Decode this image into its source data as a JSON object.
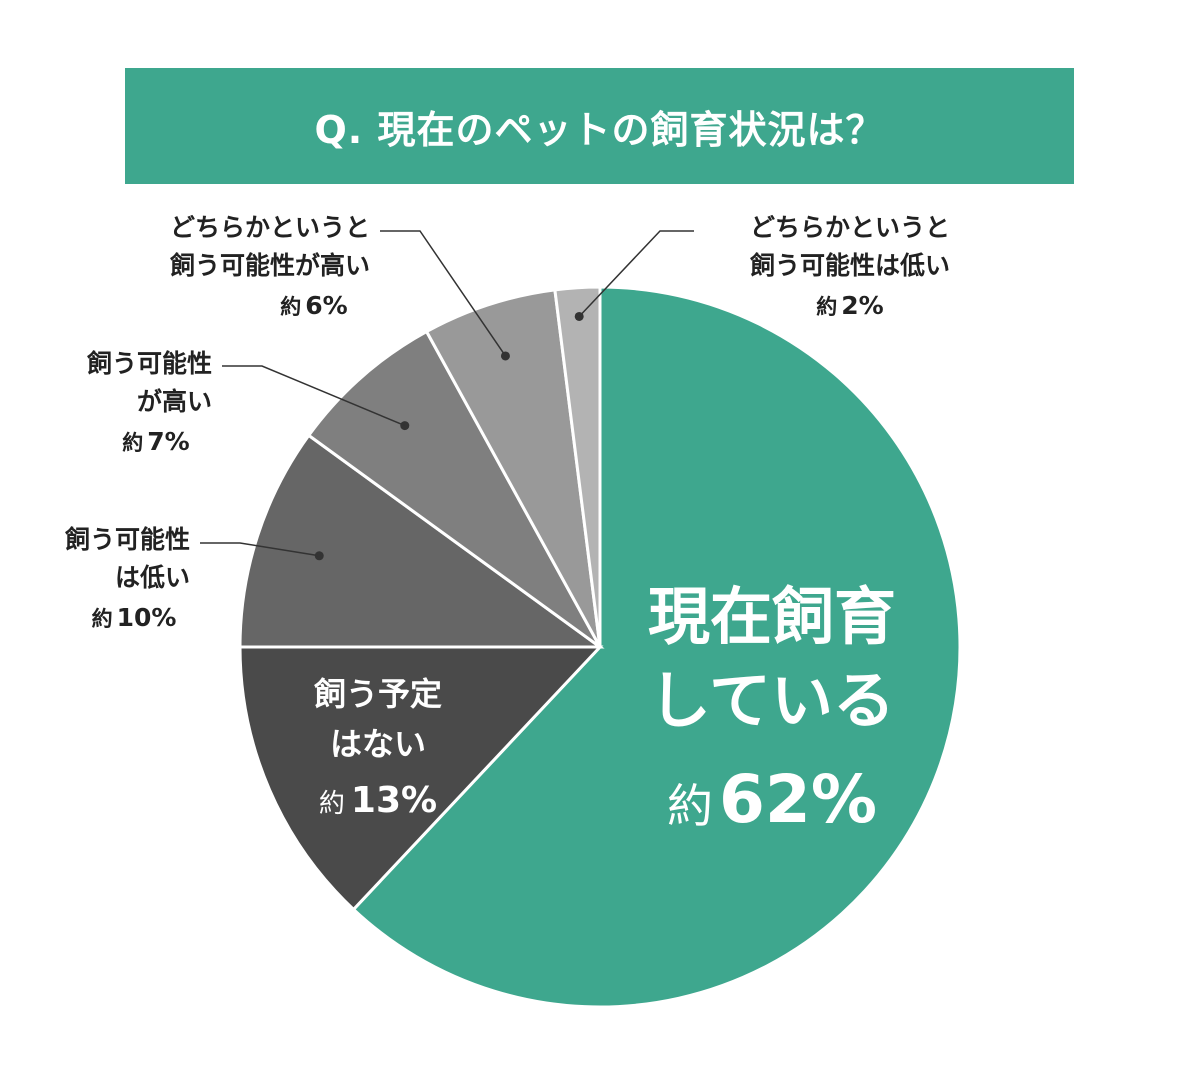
{
  "colors": {
    "banner": "#3ea78e",
    "slice_green": "#3ea78e",
    "slice_dark": "#4a4a4a",
    "slice_gray1": "#666666",
    "slice_gray2": "#7f7f7f",
    "slice_gray3": "#999999",
    "slice_gray4": "#b3b3b3",
    "leader": "#333333"
  },
  "chart_data": {
    "type": "pie",
    "title": "Q. 現在のペットの飼育状況は？",
    "slices": [
      {
        "lines": [
          "現在飼育",
          "している"
        ],
        "prefix": "約",
        "value": 62,
        "unit": "%",
        "color": "#3ea78e",
        "placement": "inside"
      },
      {
        "lines": [
          "飼う予定",
          "はない"
        ],
        "prefix": "約",
        "value": 13,
        "unit": "%",
        "color": "#4a4a4a",
        "placement": "inside"
      },
      {
        "lines": [
          "飼う可能性",
          "は低い"
        ],
        "prefix": "約",
        "value": 10,
        "unit": "%",
        "color": "#666666",
        "placement": "left"
      },
      {
        "lines": [
          "飼う可能性",
          "が高い"
        ],
        "prefix": "約",
        "value": 7,
        "unit": "%",
        "color": "#7f7f7f",
        "placement": "left"
      },
      {
        "lines": [
          "どちらかというと",
          "飼う可能性が高い"
        ],
        "prefix": "約",
        "value": 6,
        "unit": "%",
        "color": "#999999",
        "placement": "top-left"
      },
      {
        "lines": [
          "どちらかというと",
          "飼う可能性は低い"
        ],
        "prefix": "約",
        "value": 2,
        "unit": "%",
        "color": "#b3b3b3",
        "placement": "top-right"
      }
    ]
  }
}
